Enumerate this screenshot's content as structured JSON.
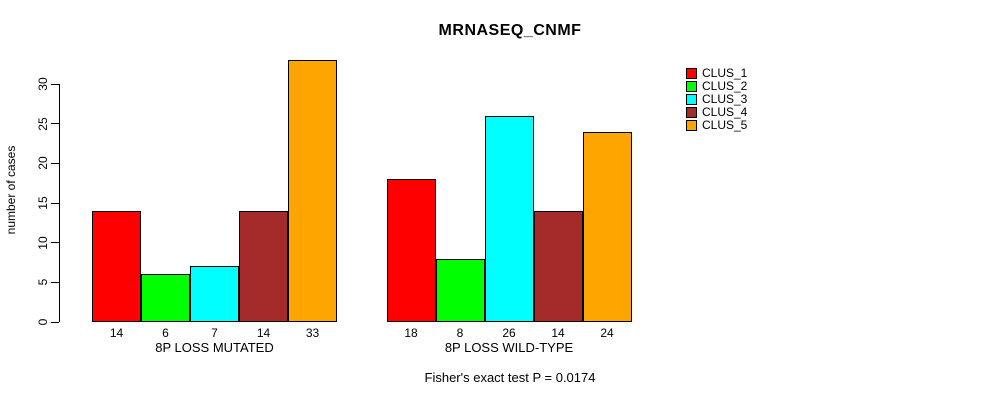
{
  "chart_data": {
    "type": "bar",
    "title": "MRNASEQ_CNMF",
    "ylabel": "number of cases",
    "xlabel": "",
    "groups": [
      {
        "label": "8P LOSS MUTATED",
        "values": [
          14,
          6,
          7,
          14,
          33
        ]
      },
      {
        "label": "8P LOSS WILD-TYPE",
        "values": [
          18,
          8,
          26,
          14,
          24
        ]
      }
    ],
    "series": [
      {
        "name": "CLUS_1",
        "color": "#FF0000"
      },
      {
        "name": "CLUS_2",
        "color": "#00FF00"
      },
      {
        "name": "CLUS_3",
        "color": "#00FFFF"
      },
      {
        "name": "CLUS_4",
        "color": "#A52A2A"
      },
      {
        "name": "CLUS_5",
        "color": "#FFA500"
      }
    ],
    "yticks": [
      0,
      5,
      10,
      15,
      20,
      25,
      30
    ],
    "ylim": [
      0,
      33
    ],
    "grid": false,
    "show_bar_values": true,
    "bar_border_color": "#000000",
    "legend_position": "top-right-outside",
    "annotation": "Fisher's exact test P = 0.0174"
  }
}
